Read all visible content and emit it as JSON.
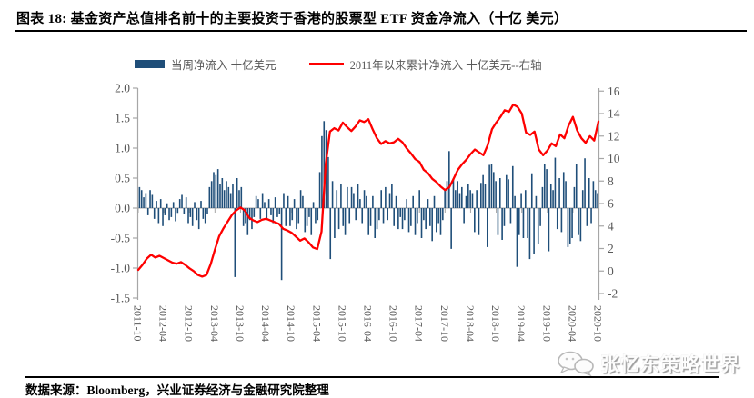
{
  "figure": {
    "label": "图表 18:",
    "title": "基金资产总值排名前十的主要投资于香港的股票型 ETF 资金净流入（十亿 美元）"
  },
  "legend": [
    {
      "label": "当周净流入 十亿美元",
      "type": "bar",
      "color": "#1f4e79"
    },
    {
      "label": "2011年以来累计净流入 十亿美元--右轴",
      "type": "line",
      "color": "#fe0000"
    }
  ],
  "watermark": {
    "text": "张忆东策略世界",
    "icon": "wechat-bubbles-icon"
  },
  "footer": {
    "source": "数据来源：Bloomberg，兴业证券经济与金融研究院整理"
  },
  "chart_data": {
    "type": "bar+line",
    "title": "基金资产总值排名前十的主要投资于香港的股票型 ETF 资金净流入（十亿 美元）",
    "grid": false,
    "legend_position": "top",
    "left_axis": {
      "label": "当周净流入（十亿美元）",
      "range": [
        -1.5,
        2.0
      ],
      "ticks": [
        "2.0",
        "1.5",
        "1.0",
        "0.5",
        "0.0",
        "-0.5",
        "-1.0",
        "-1.5"
      ]
    },
    "right_axis": {
      "label": "2011年以来累计净流入（十亿美元）",
      "range": [
        -2,
        16
      ],
      "ticks": [
        "16",
        "14",
        "12",
        "10",
        "8",
        "6",
        "4",
        "2",
        "0",
        "-2"
      ]
    },
    "x_ticks": [
      "2011-10",
      "2012-04",
      "2012-10",
      "2013-04",
      "2013-10",
      "2014-04",
      "2014-10",
      "2015-04",
      "2015-10",
      "2016-04",
      "2016-10",
      "2017-04",
      "2017-10",
      "2018-04",
      "2018-10",
      "2019-04",
      "2019-10",
      "2020-04",
      "2020-10"
    ],
    "series": [
      {
        "name": "当周净流入 十亿美元",
        "type": "bar",
        "axis": "left",
        "color": "#1f4e79",
        "x_span": [
          "2011-10",
          "2020-10"
        ],
        "values": [
          0.35,
          0.3,
          0.18,
          0.25,
          -0.12,
          0.3,
          0.22,
          -0.18,
          0.12,
          -0.25,
          0.15,
          -0.3,
          -0.12,
          0.08,
          -0.2,
          -0.15,
          0.1,
          -0.22,
          -0.08,
          0.15,
          0.22,
          -0.1,
          0.18,
          -0.25,
          -0.15,
          -0.3,
          0.1,
          -0.2,
          -0.35,
          0.12,
          -0.18,
          -0.25,
          -0.1,
          0.35,
          0.45,
          0.6,
          0.55,
          0.65,
          0.4,
          0.5,
          0.3,
          0.45,
          0.35,
          0.25,
          0.4,
          -1.15,
          0.5,
          0.3,
          0.35,
          -0.3,
          -0.25,
          -0.45,
          -0.2,
          -0.35,
          -0.15,
          0.2,
          0.15,
          -0.18,
          0.25,
          0.1,
          -0.2,
          0.15,
          -0.12,
          -0.25,
          0.18,
          -0.15,
          -0.1,
          -1.2,
          0.25,
          -0.3,
          0.2,
          -0.3,
          -0.2,
          0.15,
          -0.35,
          -0.25,
          0.3,
          0.2,
          -0.4,
          -0.3,
          -0.15,
          -0.45,
          0.1,
          -0.25,
          -0.2,
          0.6,
          1.2,
          1.45,
          1.3,
          0.85,
          -0.85,
          0.45,
          -0.5,
          0.3,
          -0.35,
          0.4,
          -0.3,
          -0.45,
          0.35,
          -0.25,
          0.35,
          0.25,
          -0.2,
          0.4,
          0.15,
          -0.25,
          0.3,
          0.2,
          -0.45,
          -0.3,
          0.2,
          -0.5,
          -0.35,
          -0.2,
          0.3,
          -0.25,
          0.35,
          -0.2,
          0.25,
          0.4,
          -0.3,
          0.2,
          -0.35,
          -0.15,
          -0.35,
          -0.2,
          0.15,
          -0.4,
          -0.3,
          0.2,
          -0.45,
          -0.25,
          0.3,
          -0.5,
          -0.2,
          -0.35,
          0.15,
          -0.3,
          -0.55,
          0.2,
          -0.4,
          -0.25,
          -0.45,
          -0.2,
          0.3,
          0.45,
          0.95,
          -0.68,
          0.5,
          0.3,
          0.45,
          0.25,
          0.35,
          -0.25,
          0.2,
          0.4,
          0.3,
          0.25,
          -0.4,
          0.3,
          -0.45,
          0.42,
          0.55,
          0.4,
          -0.65,
          0.72,
          0.73,
          0.6,
          0.45,
          -0.45,
          0.5,
          -0.53,
          -0.3,
          0.55,
          0.48,
          -0.25,
          0.7,
          0.2,
          -0.98,
          -0.45,
          0.25,
          -0.5,
          0.3,
          -0.5,
          -0.85,
          0.58,
          -0.77,
          0.2,
          -0.6,
          -0.3,
          0.35,
          0.73,
          0.65,
          -0.72,
          0.4,
          0.3,
          0.84,
          -0.35,
          0.5,
          -0.4,
          0.6,
          0.45,
          -0.65,
          -0.6,
          -0.5,
          0.35,
          0.74,
          -0.45,
          -0.55,
          0.3,
          0.83,
          -0.3,
          0.5,
          -0.25,
          0.45,
          0.3,
          0.25
        ]
      },
      {
        "name": "2011年以来累计净流入 十亿美元--右轴",
        "type": "line",
        "axis": "right",
        "color": "#fe0000",
        "x_monthly_span": [
          "2011-10",
          "2020-10"
        ],
        "values": [
          0.1,
          0.55,
          1.1,
          1.45,
          1.2,
          1.35,
          1.15,
          0.95,
          0.75,
          0.65,
          0.8,
          0.55,
          0.25,
          0.0,
          -0.35,
          -0.5,
          -0.35,
          0.6,
          1.9,
          3.1,
          3.8,
          4.4,
          5.0,
          5.4,
          5.65,
          5.4,
          4.75,
          4.5,
          4.35,
          4.55,
          4.65,
          4.5,
          4.35,
          4.2,
          3.75,
          3.6,
          3.4,
          3.05,
          2.7,
          2.9,
          2.55,
          2.1,
          1.95,
          3.5,
          9.5,
          12.4,
          12.7,
          12.5,
          13.2,
          12.8,
          12.45,
          12.85,
          13.4,
          13.25,
          13.5,
          12.6,
          11.8,
          11.3,
          11.55,
          11.35,
          11.45,
          11.75,
          11.45,
          10.9,
          10.45,
          9.95,
          9.7,
          9.0,
          8.7,
          8.2,
          7.9,
          7.5,
          7.2,
          7.45,
          8.2,
          9.0,
          9.5,
          9.9,
          10.4,
          10.8,
          10.55,
          10.3,
          11.2,
          12.6,
          13.2,
          13.7,
          14.3,
          14.15,
          14.8,
          14.6,
          14.0,
          12.3,
          12.1,
          12.4,
          10.8,
          10.3,
          10.7,
          11.35,
          11.1,
          12.15,
          11.8,
          12.95,
          13.7,
          12.5,
          11.8,
          11.4,
          12.0,
          11.6,
          13.3
        ]
      }
    ]
  }
}
